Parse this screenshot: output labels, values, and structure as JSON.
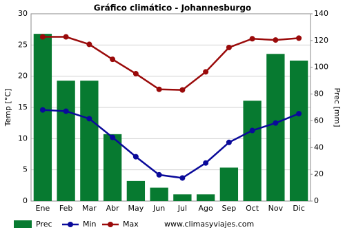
{
  "chart_data": {
    "type": "bar",
    "title": "Gráfico climático - Johannesburgo",
    "categories": [
      "Ene",
      "Feb",
      "Mar",
      "Abr",
      "May",
      "Jun",
      "Jul",
      "Ago",
      "Sep",
      "Oct",
      "Nov",
      "Dic"
    ],
    "ylabel": "Temp [°C]",
    "y2label": "Prec [mm]",
    "ylim": [
      0,
      30
    ],
    "yticks": [
      0,
      5,
      10,
      15,
      20,
      25,
      30
    ],
    "y2lim": [
      0,
      140
    ],
    "y2ticks": [
      0,
      20,
      40,
      60,
      80,
      100,
      120,
      140
    ],
    "grid": true,
    "series": [
      {
        "name": "Prec",
        "type": "bar",
        "axis": "y2",
        "color": "#077a30",
        "values": [
          125,
          90,
          90,
          50,
          15,
          10,
          5,
          5,
          25,
          75,
          110,
          105
        ]
      },
      {
        "name": "Min",
        "type": "line",
        "color": "#0a0a9a",
        "values": [
          14.6,
          14.4,
          13.2,
          10.2,
          7.1,
          4.2,
          3.7,
          6.1,
          9.4,
          11.3,
          12.5,
          14.0
        ]
      },
      {
        "name": "Max",
        "type": "line",
        "color": "#9a0a0a",
        "values": [
          26.3,
          26.3,
          25.1,
          22.7,
          20.4,
          17.9,
          17.8,
          20.7,
          24.6,
          26.0,
          25.8,
          26.1
        ]
      }
    ],
    "source": "www.climasyviajes.com"
  }
}
